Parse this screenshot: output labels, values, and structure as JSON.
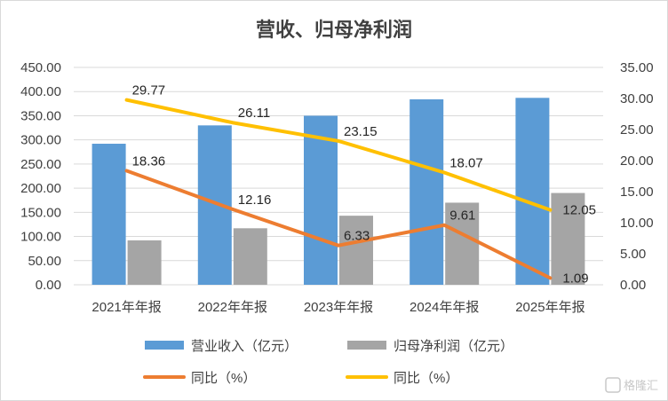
{
  "chart_data": {
    "type": "bar",
    "title": "营收、归母净利润",
    "categories": [
      "2021年年报",
      "2022年年报",
      "2023年年报",
      "2024年年报",
      "2025年年报"
    ],
    "left_axis": {
      "ylim": [
        0,
        450
      ],
      "ticks": [
        "0.00",
        "50.00",
        "100.00",
        "150.00",
        "200.00",
        "250.00",
        "300.00",
        "350.00",
        "400.00",
        "450.00"
      ]
    },
    "right_axis": {
      "ylim": [
        0,
        35
      ],
      "ticks": [
        "0.00",
        "5.00",
        "10.00",
        "15.00",
        "20.00",
        "25.00",
        "30.00",
        "35.00"
      ]
    },
    "bar_series": [
      {
        "name": "营业收入（亿元）",
        "values": [
          292,
          330,
          350,
          384,
          387
        ],
        "color": "#5b9bd5",
        "axis": "left"
      },
      {
        "name": "归母净利润（亿元）",
        "values": [
          92,
          117,
          143,
          170,
          190
        ],
        "color": "#a5a5a5",
        "axis": "left"
      }
    ],
    "line_series": [
      {
        "name": "同比（%）",
        "values": [
          18.36,
          12.16,
          6.33,
          9.61,
          1.09
        ],
        "labels": [
          "18.36",
          "12.16",
          "6.33",
          "9.61",
          "1.09"
        ],
        "color": "#ed7d31",
        "axis": "right"
      },
      {
        "name": "同比（%）",
        "values": [
          29.77,
          26.11,
          23.15,
          18.07,
          12.05
        ],
        "labels": [
          "29.77",
          "26.11",
          "23.15",
          "18.07",
          "12.05"
        ],
        "color": "#ffc000",
        "axis": "right"
      }
    ],
    "grid": true,
    "legend_position": "bottom"
  },
  "watermark": "格隆汇"
}
